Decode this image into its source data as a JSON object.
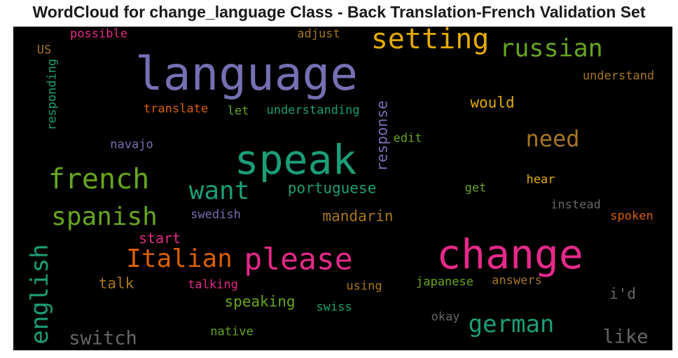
{
  "title": "WordCloud for change_language Class - Back Translation-French Validation Set",
  "words": {
    "language": {
      "text": "language",
      "color": "#7570b3"
    },
    "speak": {
      "text": "speak",
      "color": "#1b9e77"
    },
    "change": {
      "text": "change",
      "color": "#e7298a"
    },
    "please": {
      "text": "please",
      "color": "#e7298a"
    },
    "setting": {
      "text": "setting",
      "color": "#e6ab02"
    },
    "russian": {
      "text": "russian",
      "color": "#66a61e"
    },
    "french": {
      "text": "french",
      "color": "#66a61e"
    },
    "want": {
      "text": "want",
      "color": "#1b9e77"
    },
    "spanish": {
      "text": "spanish",
      "color": "#66a61e"
    },
    "italian": {
      "text": "Italian",
      "color": "#d95f02"
    },
    "need": {
      "text": "need",
      "color": "#a6761d"
    },
    "german": {
      "text": "german",
      "color": "#1b9e77"
    },
    "english": {
      "text": "english",
      "color": "#1b9e77"
    },
    "switch": {
      "text": "switch",
      "color": "#666666"
    },
    "like": {
      "text": "like",
      "color": "#666666"
    },
    "response": {
      "text": "response",
      "color": "#7570b3"
    },
    "portuguese": {
      "text": "portuguese",
      "color": "#1b9e77"
    },
    "mandarin": {
      "text": "mandarin",
      "color": "#a6761d"
    },
    "speaking": {
      "text": "speaking",
      "color": "#66a61e"
    },
    "would": {
      "text": "would",
      "color": "#e6ab02"
    },
    "talk": {
      "text": "talk",
      "color": "#a6761d"
    },
    "start": {
      "text": "start",
      "color": "#e7298a"
    },
    "i_d": {
      "text": "i'd",
      "color": "#666666"
    },
    "possible": {
      "text": "possible",
      "color": "#e7298a"
    },
    "adjust": {
      "text": "adjust",
      "color": "#a6761d"
    },
    "us": {
      "text": "US",
      "color": "#a6761d"
    },
    "understand": {
      "text": "understand",
      "color": "#a6761d"
    },
    "responding": {
      "text": "responding",
      "color": "#1b9e77"
    },
    "translate": {
      "text": "translate",
      "color": "#d95f02"
    },
    "let": {
      "text": "let",
      "color": "#66a61e"
    },
    "understanding": {
      "text": "understanding",
      "color": "#1b9e77"
    },
    "edit": {
      "text": "edit",
      "color": "#66a61e"
    },
    "navajo": {
      "text": "navajo",
      "color": "#7570b3"
    },
    "hear": {
      "text": "hear",
      "color": "#e6ab02"
    },
    "get": {
      "text": "get",
      "color": "#66a61e"
    },
    "instead": {
      "text": "instead",
      "color": "#666666"
    },
    "spoken": {
      "text": "spoken",
      "color": "#d95f02"
    },
    "swedish": {
      "text": "swedish",
      "color": "#7570b3"
    },
    "talking": {
      "text": "talking",
      "color": "#e7298a"
    },
    "using": {
      "text": "using",
      "color": "#a6761d"
    },
    "japanese": {
      "text": "japanese",
      "color": "#66a61e"
    },
    "answers": {
      "text": "answers",
      "color": "#a6761d"
    },
    "swiss": {
      "text": "swiss",
      "color": "#1b9e77"
    },
    "okay": {
      "text": "okay",
      "color": "#666666"
    },
    "native": {
      "text": "native",
      "color": "#66a61e"
    }
  }
}
